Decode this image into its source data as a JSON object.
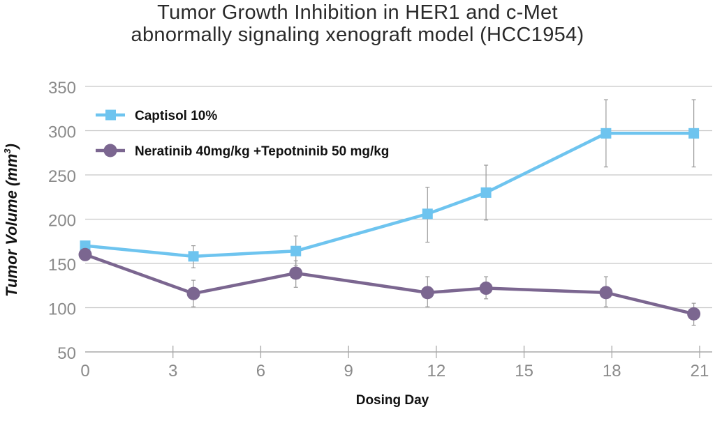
{
  "chart_data": {
    "type": "line",
    "title_lines": [
      "Tumor Growth Inhibition in HER1 and c-Met",
      "abnormally signaling xenograft model (HCC1954)"
    ],
    "xlabel": "Dosing Day",
    "ylabel": "Tumor Volume (mm",
    "ylabel_superscript": "3",
    "ylabel_close": ")",
    "xlim": [
      0,
      21
    ],
    "ylim": [
      50,
      350
    ],
    "x_ticks": [
      0,
      3,
      6,
      9,
      12,
      15,
      18,
      21
    ],
    "y_ticks": [
      50,
      100,
      150,
      200,
      250,
      300,
      350
    ],
    "grid": "horizontal",
    "legend_position": "top-left",
    "series": [
      {
        "name": "Captisol 10%",
        "color": "#6ec4ef",
        "marker": "square",
        "x": [
          0,
          3.7,
          7.2,
          11.7,
          13.7,
          17.8,
          20.8
        ],
        "y": [
          170,
          158,
          164,
          206,
          230,
          297,
          297
        ],
        "err_low": [
          170,
          145,
          148,
          174,
          199,
          259,
          259
        ],
        "err_high": [
          170,
          170,
          181,
          236,
          261,
          335,
          335
        ]
      },
      {
        "name": "Neratinib 40mg/kg +Tepotninib 50 mg/kg",
        "color": "#7b6690",
        "marker": "circle",
        "x": [
          0,
          3.7,
          7.2,
          11.7,
          13.7,
          17.8,
          20.8
        ],
        "y": [
          160,
          116,
          139,
          117,
          122,
          117,
          93
        ],
        "err_low": [
          160,
          101,
          123,
          101,
          110,
          101,
          80
        ],
        "err_high": [
          160,
          131,
          153,
          135,
          135,
          135,
          105
        ]
      }
    ]
  }
}
